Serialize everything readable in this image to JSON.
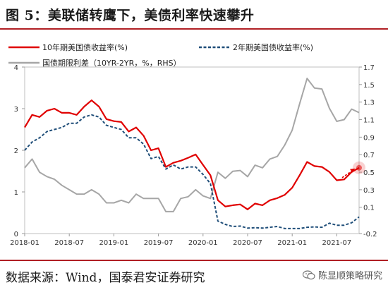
{
  "title": "图 5：美联储转鹰下，美债利率快速攀升",
  "source": "数据来源：Wind，国泰君安证券研究",
  "watermark": "陈显顺策略研究",
  "colors": {
    "us10y": "#e00000",
    "us2y": "#1f4e79",
    "spread": "#a6a6a6",
    "accent": "#b01f24"
  },
  "icons": [
    "wechat-icon",
    "arrow-annotation"
  ],
  "chart_data": {
    "type": "line",
    "legend_position": "top",
    "grid": false,
    "x_ticks": [
      "2018-01",
      "2018-07",
      "2019-01",
      "2019-07",
      "2020-01",
      "2020-07",
      "2021-01",
      "2021-07"
    ],
    "x_range": [
      "2018-01",
      "2021-10"
    ],
    "y_left": {
      "ticks": [
        "0",
        "1",
        "2",
        "3",
        "4"
      ],
      "range": [
        0,
        4
      ]
    },
    "y_right": {
      "ticks": [
        "-0.2",
        "0.1",
        "0.3",
        "0.5",
        "0.7",
        "0.9",
        "1.1",
        "1.3",
        "1.5",
        "1.7"
      ],
      "range": [
        -0.2,
        1.7
      ]
    },
    "series": [
      {
        "name": "10年期美国债收益率(%)",
        "axis": "left",
        "style": "solid",
        "x": [
          "2018-01",
          "2018-02",
          "2018-03",
          "2018-04",
          "2018-05",
          "2018-06",
          "2018-07",
          "2018-08",
          "2018-09",
          "2018-10",
          "2018-11",
          "2018-12",
          "2019-01",
          "2019-02",
          "2019-03",
          "2019-04",
          "2019-05",
          "2019-06",
          "2019-07",
          "2019-08",
          "2019-09",
          "2019-10",
          "2019-11",
          "2019-12",
          "2020-01",
          "2020-02",
          "2020-03",
          "2020-04",
          "2020-05",
          "2020-06",
          "2020-07",
          "2020-08",
          "2020-09",
          "2020-10",
          "2020-11",
          "2020-12",
          "2021-01",
          "2021-02",
          "2021-03",
          "2021-04",
          "2021-05",
          "2021-06",
          "2021-07",
          "2021-08",
          "2021-09",
          "2021-10"
        ],
        "values": [
          2.55,
          2.85,
          2.8,
          2.95,
          3.0,
          2.9,
          2.9,
          2.85,
          3.05,
          3.2,
          3.05,
          2.75,
          2.7,
          2.68,
          2.45,
          2.55,
          2.35,
          2.0,
          2.05,
          1.6,
          1.7,
          1.75,
          1.82,
          1.9,
          1.65,
          1.4,
          0.8,
          0.65,
          0.68,
          0.7,
          0.58,
          0.72,
          0.68,
          0.8,
          0.85,
          0.93,
          1.1,
          1.4,
          1.72,
          1.62,
          1.6,
          1.48,
          1.28,
          1.3,
          1.48,
          1.58
        ]
      },
      {
        "name": "2年期美国债收益率(%)",
        "axis": "left",
        "style": "dashed",
        "x": [
          "2018-01",
          "2018-02",
          "2018-03",
          "2018-04",
          "2018-05",
          "2018-06",
          "2018-07",
          "2018-08",
          "2018-09",
          "2018-10",
          "2018-11",
          "2018-12",
          "2019-01",
          "2019-02",
          "2019-03",
          "2019-04",
          "2019-05",
          "2019-06",
          "2019-07",
          "2019-08",
          "2019-09",
          "2019-10",
          "2019-11",
          "2019-12",
          "2020-01",
          "2020-02",
          "2020-03",
          "2020-04",
          "2020-05",
          "2020-06",
          "2020-07",
          "2020-08",
          "2020-09",
          "2020-10",
          "2020-11",
          "2020-12",
          "2021-01",
          "2021-02",
          "2021-03",
          "2021-04",
          "2021-05",
          "2021-06",
          "2021-07",
          "2021-08",
          "2021-09",
          "2021-10"
        ],
        "values": [
          2.0,
          2.2,
          2.3,
          2.45,
          2.5,
          2.55,
          2.65,
          2.65,
          2.8,
          2.85,
          2.8,
          2.6,
          2.55,
          2.5,
          2.3,
          2.3,
          2.15,
          1.8,
          1.85,
          1.55,
          1.65,
          1.55,
          1.6,
          1.6,
          1.42,
          1.2,
          0.3,
          0.22,
          0.17,
          0.18,
          0.13,
          0.14,
          0.13,
          0.15,
          0.17,
          0.12,
          0.12,
          0.12,
          0.15,
          0.16,
          0.15,
          0.25,
          0.2,
          0.2,
          0.26,
          0.4
        ]
      },
      {
        "name": "国债期限利差（10YR-2YR，%，RHS）",
        "axis": "right",
        "style": "solid",
        "x": [
          "2018-01",
          "2018-02",
          "2018-03",
          "2018-04",
          "2018-05",
          "2018-06",
          "2018-07",
          "2018-08",
          "2018-09",
          "2018-10",
          "2018-11",
          "2018-12",
          "2019-01",
          "2019-02",
          "2019-03",
          "2019-04",
          "2019-05",
          "2019-06",
          "2019-07",
          "2019-08",
          "2019-09",
          "2019-10",
          "2019-11",
          "2019-12",
          "2020-01",
          "2020-02",
          "2020-03",
          "2020-04",
          "2020-05",
          "2020-06",
          "2020-07",
          "2020-08",
          "2020-09",
          "2020-10",
          "2020-11",
          "2020-12",
          "2021-01",
          "2021-02",
          "2021-03",
          "2021-04",
          "2021-05",
          "2021-06",
          "2021-07",
          "2021-08",
          "2021-09",
          "2021-10"
        ],
        "values": [
          0.55,
          0.65,
          0.5,
          0.45,
          0.42,
          0.35,
          0.3,
          0.25,
          0.25,
          0.3,
          0.25,
          0.15,
          0.15,
          0.18,
          0.15,
          0.25,
          0.2,
          0.2,
          0.2,
          0.05,
          0.05,
          0.2,
          0.22,
          0.3,
          0.23,
          0.2,
          0.5,
          0.43,
          0.51,
          0.52,
          0.45,
          0.58,
          0.55,
          0.65,
          0.68,
          0.81,
          0.98,
          1.28,
          1.57,
          1.46,
          1.45,
          1.23,
          1.08,
          1.1,
          1.22,
          1.18
        ]
      }
    ],
    "annotation": {
      "type": "arrow",
      "x": "2021-10",
      "y": 1.58,
      "axis": "left",
      "color": "#e00000"
    }
  }
}
